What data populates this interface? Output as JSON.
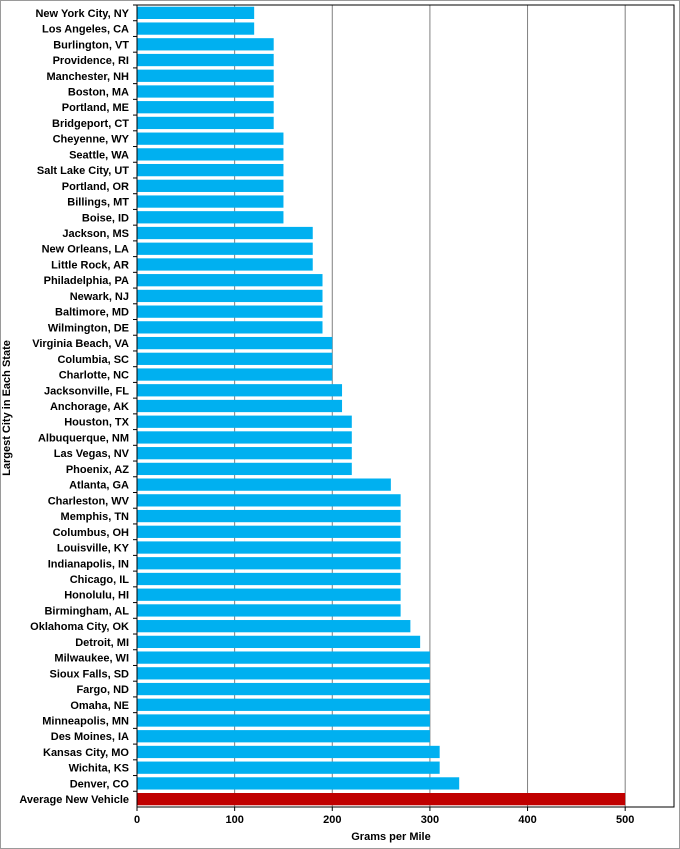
{
  "chart_data": {
    "type": "bar",
    "orientation": "horizontal",
    "title": "",
    "xlabel": "Grams per Mile",
    "ylabel": "Largest City in Each State",
    "xlim": [
      0,
      550
    ],
    "xticks": [
      0,
      100,
      200,
      300,
      400,
      500
    ],
    "grid": true,
    "legend": "none",
    "colors": {
      "city": "#00b0f0",
      "average": "#c00000",
      "grid": "#808080"
    },
    "categories": [
      "New York City, NY",
      "Los Angeles, CA",
      "Burlington, VT",
      "Providence, RI",
      "Manchester, NH",
      "Boston, MA",
      "Portland, ME",
      "Bridgeport, CT",
      "Cheyenne, WY",
      "Seattle, WA",
      "Salt Lake City, UT",
      "Portland, OR",
      "Billings, MT",
      "Boise, ID",
      "Jackson, MS",
      "New Orleans, LA",
      "Little Rock, AR",
      "Philadelphia, PA",
      "Newark, NJ",
      "Baltimore, MD",
      "Wilmington, DE",
      "Virginia Beach, VA",
      "Columbia, SC",
      "Charlotte, NC",
      "Jacksonville, FL",
      "Anchorage, AK",
      "Houston, TX",
      "Albuquerque, NM",
      "Las Vegas, NV",
      "Phoenix, AZ",
      "Atlanta, GA",
      "Charleston, WV",
      "Memphis, TN",
      "Columbus, OH",
      "Louisville, KY",
      "Indianapolis, IN",
      "Chicago, IL",
      "Honolulu, HI",
      "Birmingham, AL",
      "Oklahoma City, OK",
      "Detroit, MI",
      "Milwaukee, WI",
      "Sioux Falls, SD",
      "Fargo, ND",
      "Omaha, NE",
      "Minneapolis, MN",
      "Des Moines, IA",
      "Kansas City, MO",
      "Wichita, KS",
      "Denver, CO",
      "Average New Vehicle"
    ],
    "values": [
      120,
      120,
      140,
      140,
      140,
      140,
      140,
      140,
      150,
      150,
      150,
      150,
      150,
      150,
      180,
      180,
      180,
      190,
      190,
      190,
      190,
      200,
      200,
      200,
      210,
      210,
      220,
      220,
      220,
      220,
      260,
      270,
      270,
      270,
      270,
      270,
      270,
      270,
      270,
      280,
      290,
      300,
      300,
      300,
      300,
      300,
      300,
      310,
      310,
      330,
      500
    ],
    "highlight": "Average New Vehicle"
  }
}
